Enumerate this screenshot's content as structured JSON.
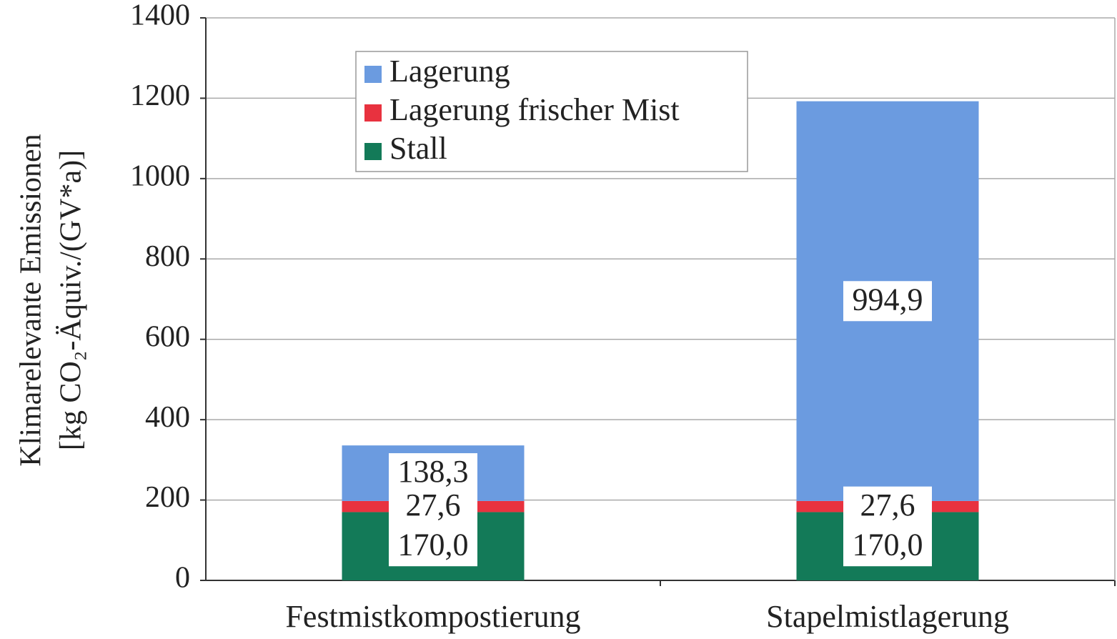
{
  "chart_data": {
    "type": "stacked_bar",
    "ylabel": [
      "Klimarelevante Emissionen",
      "[kg CO₂-Äquiv./(GV*a)]"
    ],
    "categories": [
      "Festmistkompostierung",
      "Stapelmistlagerung"
    ],
    "series": [
      {
        "name": "Stall",
        "color": "#137a58",
        "values": [
          170.0,
          170.0
        ],
        "value_labels": [
          "170,0",
          "170,0"
        ]
      },
      {
        "name": "Lagerung frischer Mist",
        "color": "#e8323f",
        "values": [
          27.6,
          27.6
        ],
        "value_labels": [
          "27,6",
          "27,6"
        ]
      },
      {
        "name": "Lagerung",
        "color": "#6b9be0",
        "values": [
          138.3,
          994.9
        ],
        "value_labels": [
          "138,3",
          "994,9"
        ]
      }
    ],
    "ylim": [
      0,
      1400
    ],
    "yticks": [
      0,
      200,
      400,
      600,
      800,
      1000,
      1200,
      1400
    ],
    "grid": true,
    "legend": "top-left"
  }
}
